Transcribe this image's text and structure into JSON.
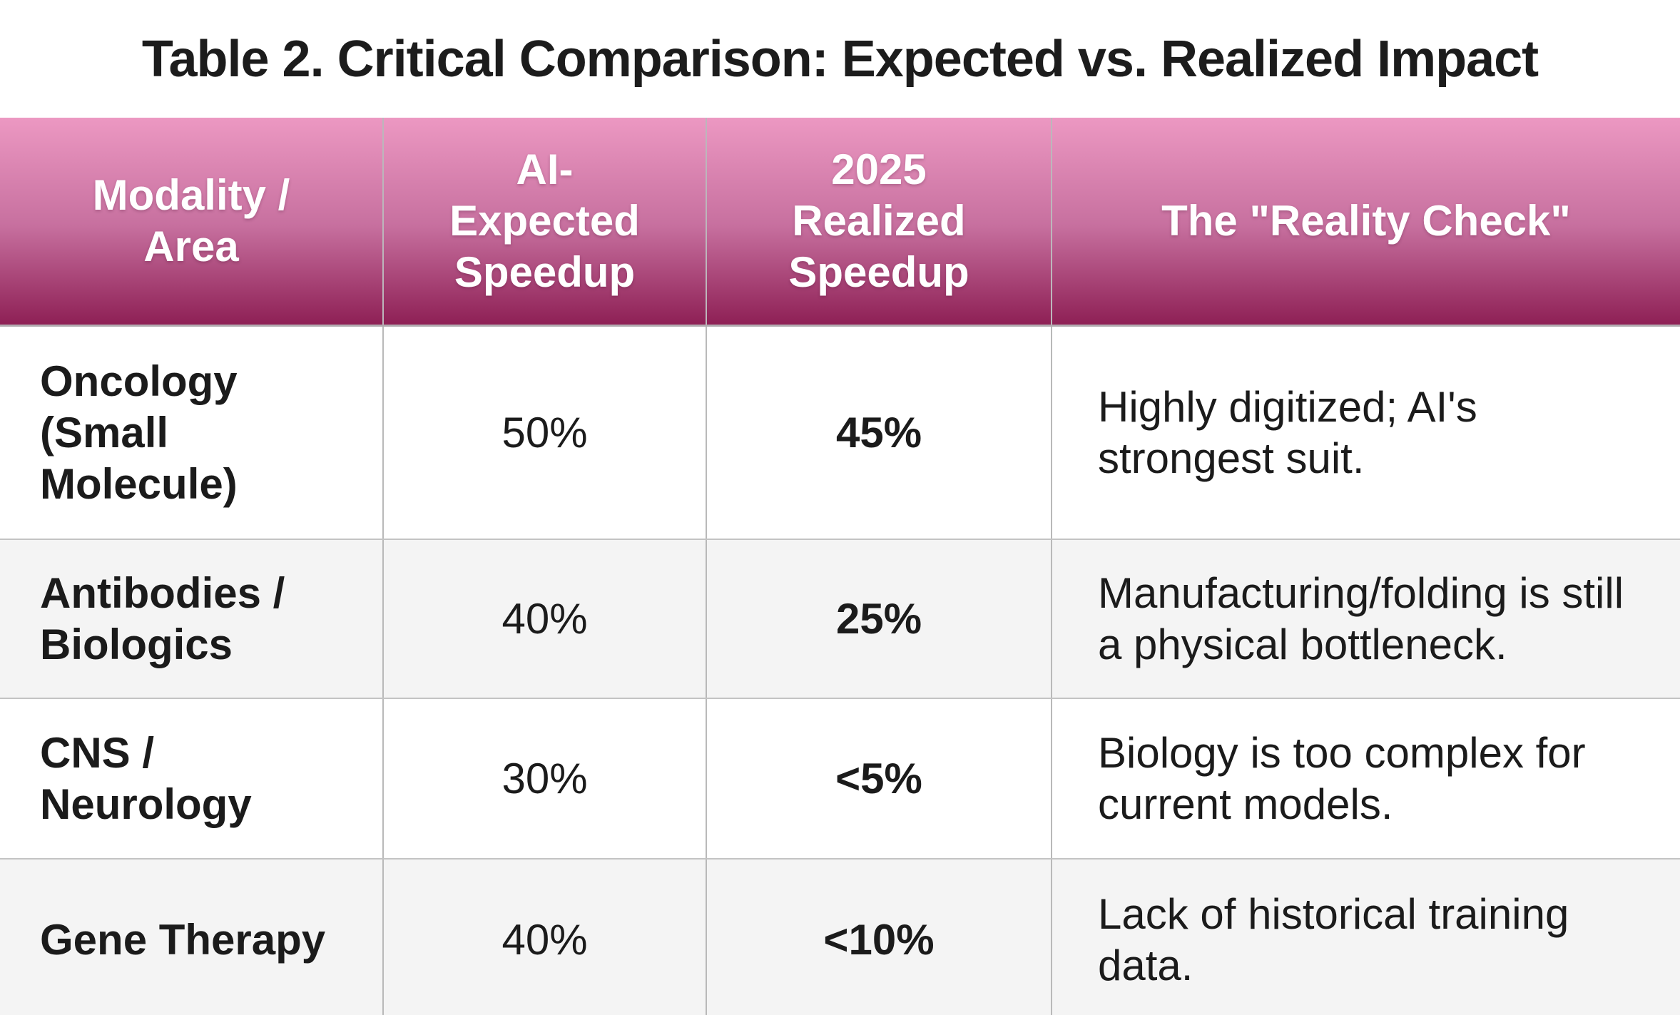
{
  "title": "Table 2. Critical Comparison: Expected vs. Realized Impact",
  "table": {
    "headers": {
      "modality": "Modality /\nArea",
      "expected": "AI-\nExpected\nSpeedup",
      "realized": "2025\nRealized\nSpeedup",
      "reality_check": "The \"Reality Check\""
    },
    "rows": [
      {
        "modality": "Oncology\n(Small\nMolecule)",
        "expected": "50%",
        "realized": "45%",
        "reality_check": "Highly digitized; AI's\nstrongest suit."
      },
      {
        "modality": "Antibodies /\nBiologics",
        "expected": "40%",
        "realized": "25%",
        "reality_check": "Manufacturing/folding is still\na physical bottleneck."
      },
      {
        "modality": "CNS /\nNeurology",
        "expected": "30%",
        "realized": "<5%",
        "reality_check": "Biology is too complex for\ncurrent models."
      },
      {
        "modality": "Gene Therapy",
        "expected": "40%",
        "realized": "<10%",
        "reality_check": "Lack of historical training\ndata."
      }
    ]
  },
  "chart_data": {
    "type": "table",
    "title": "Table 2. Critical Comparison: Expected vs. Realized Impact",
    "columns": [
      "Modality / Area",
      "AI-Expected Speedup",
      "2025 Realized Speedup",
      "The \"Reality Check\""
    ],
    "rows": [
      [
        "Oncology (Small Molecule)",
        "50%",
        "45%",
        "Highly digitized; AI's strongest suit."
      ],
      [
        "Antibodies / Biologics",
        "40%",
        "25%",
        "Manufacturing/folding is still a physical bottleneck."
      ],
      [
        "CNS / Neurology",
        "30%",
        "<5%",
        "Biology is too complex for current models."
      ],
      [
        "Gene Therapy",
        "40%",
        "<10%",
        "Lack of historical training data."
      ]
    ],
    "expected_speedup_pct": [
      50,
      40,
      30,
      40
    ],
    "realized_speedup_pct": [
      45,
      25,
      5,
      10
    ],
    "realized_speedup_qualifier": [
      "",
      "",
      "<",
      "<"
    ]
  },
  "colors": {
    "header_gradient_top": "#ec98c2",
    "header_gradient_mid": "#c7709f",
    "header_gradient_bottom": "#8e2055",
    "header_text": "#ffffff",
    "body_text": "#1b1b1b",
    "row_alt_background": "#f4f4f4",
    "grid_border": "#b9b9b9"
  }
}
